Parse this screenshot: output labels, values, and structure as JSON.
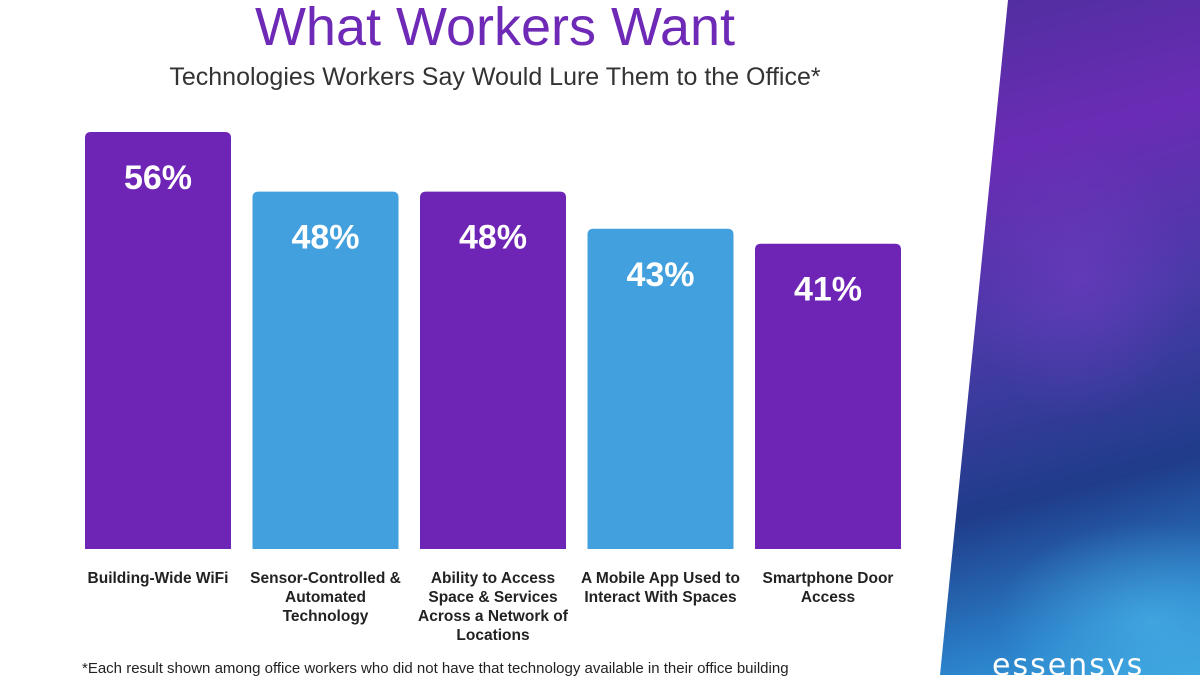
{
  "title": "What Workers Want",
  "subtitle": "Technologies Workers Say Would Lure Them to the Office*",
  "footnote": "*Each result shown among office workers who did not have that technology available in their office building",
  "logo_text": "essensys",
  "colors": {
    "purple": "#6e25b6",
    "blue": "#42a0de",
    "title": "#6e2ab6"
  },
  "chart_data": {
    "type": "bar",
    "title": "What Workers Want",
    "subtitle": "Technologies Workers Say Would Lure Them to the Office*",
    "categories": [
      "Building-Wide WiFi",
      "Sensor-Controlled & Automated Technology",
      "Ability to Access Space & Services Across a Network of Locations",
      "A Mobile App Used to Interact With Spaces",
      "Smartphone Door Access"
    ],
    "values": [
      56,
      48,
      48,
      43,
      41
    ],
    "value_labels": [
      "56%",
      "48%",
      "48%",
      "43%",
      "41%"
    ],
    "bar_colors": [
      "#6e25b6",
      "#42a0de",
      "#6e25b6",
      "#42a0de",
      "#6e25b6"
    ],
    "xlabel": "",
    "ylabel": "",
    "ylim": [
      0,
      56
    ],
    "grid": false,
    "legend": "none"
  }
}
